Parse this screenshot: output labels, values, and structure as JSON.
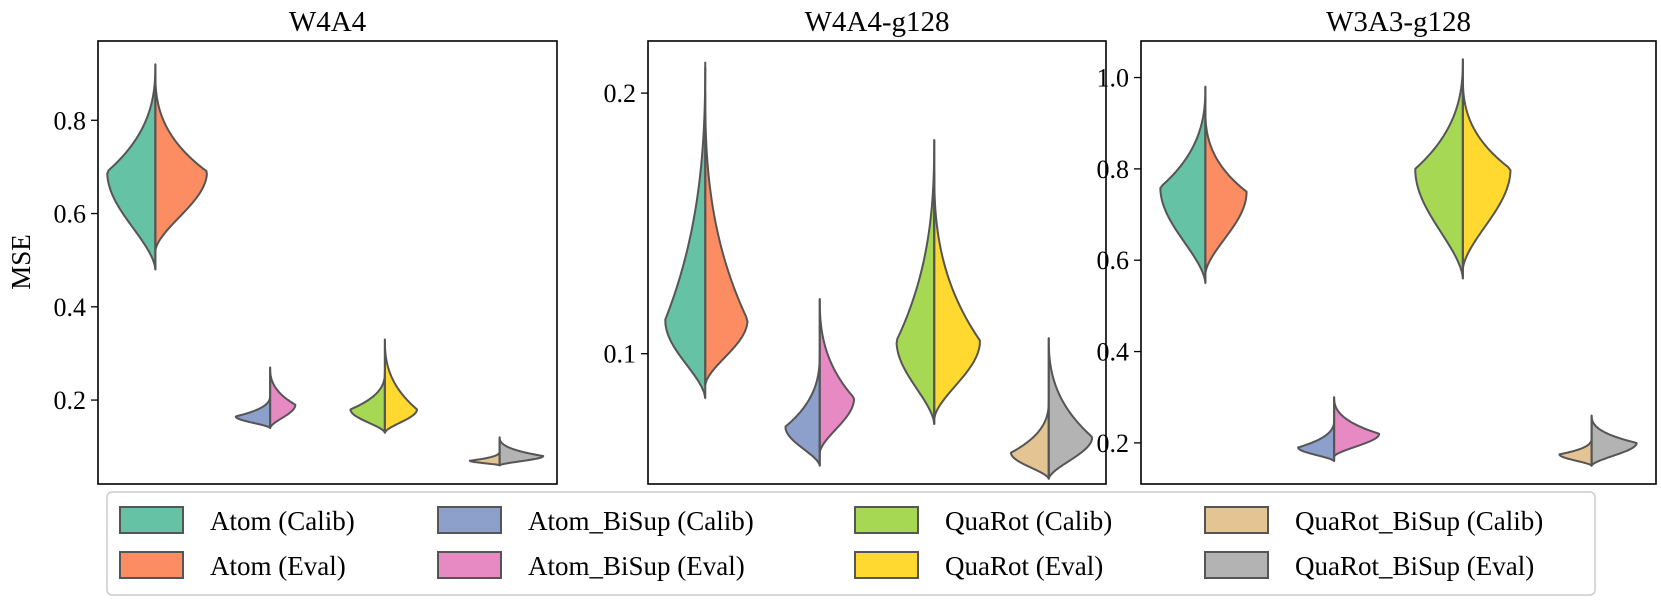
{
  "chart_data": [
    {
      "type": "violin",
      "title": "W4A4",
      "ylabel": "MSE",
      "ylim": [
        0.02,
        0.97
      ],
      "yticks": [
        "0.2",
        "0.4",
        "0.6",
        "0.8"
      ],
      "groups": [
        {
          "name": "Atom",
          "calib": {
            "min": 0.48,
            "max": 0.92,
            "peak": 0.69,
            "width": 0.42
          },
          "eval": {
            "min": 0.52,
            "max": 0.9,
            "peak": 0.69,
            "width": 0.45
          }
        },
        {
          "name": "Atom_BiSup",
          "calib": {
            "min": 0.14,
            "max": 0.21,
            "peak": 0.165,
            "width": 0.3
          },
          "eval": {
            "min": 0.14,
            "max": 0.27,
            "peak": 0.19,
            "width": 0.22
          }
        },
        {
          "name": "QuaRot",
          "calib": {
            "min": 0.13,
            "max": 0.26,
            "peak": 0.18,
            "width": 0.3
          },
          "eval": {
            "min": 0.13,
            "max": 0.33,
            "peak": 0.18,
            "width": 0.28
          }
        },
        {
          "name": "QuaRot_BiSup",
          "calib": {
            "min": 0.06,
            "max": 0.09,
            "peak": 0.07,
            "width": 0.26
          },
          "eval": {
            "min": 0.06,
            "max": 0.12,
            "peak": 0.08,
            "width": 0.38
          }
        }
      ]
    },
    {
      "type": "violin",
      "title": "W4A4-g128",
      "ylim": [
        0.05,
        0.22
      ],
      "yticks": [
        "0.1",
        "0.2"
      ],
      "groups": [
        {
          "name": "Atom",
          "calib": {
            "min": 0.083,
            "max": 0.212,
            "peak": 0.113,
            "width": 0.35
          },
          "eval": {
            "min": 0.088,
            "max": 0.2,
            "peak": 0.113,
            "width": 0.37
          }
        },
        {
          "name": "Atom_BiSup",
          "calib": {
            "min": 0.057,
            "max": 0.1,
            "peak": 0.072,
            "width": 0.3
          },
          "eval": {
            "min": 0.062,
            "max": 0.121,
            "peak": 0.083,
            "width": 0.3
          }
        },
        {
          "name": "QuaRot",
          "calib": {
            "min": 0.073,
            "max": 0.182,
            "peak": 0.105,
            "width": 0.33
          },
          "eval": {
            "min": 0.075,
            "max": 0.17,
            "peak": 0.105,
            "width": 0.4
          }
        },
        {
          "name": "QuaRot_BiSup",
          "calib": {
            "min": 0.052,
            "max": 0.082,
            "peak": 0.062,
            "width": 0.33
          },
          "eval": {
            "min": 0.052,
            "max": 0.106,
            "peak": 0.068,
            "width": 0.38
          }
        }
      ]
    },
    {
      "type": "violin",
      "title": "W3A3-g128",
      "ylim": [
        0.11,
        1.08
      ],
      "yticks": [
        "0.2",
        "0.4",
        "0.6",
        "0.8",
        "1.0"
      ],
      "groups": [
        {
          "name": "Atom",
          "calib": {
            "min": 0.55,
            "max": 0.98,
            "peak": 0.76,
            "width": 0.35
          },
          "eval": {
            "min": 0.57,
            "max": 0.93,
            "peak": 0.75,
            "width": 0.32
          }
        },
        {
          "name": "Atom_BiSup",
          "calib": {
            "min": 0.16,
            "max": 0.25,
            "peak": 0.19,
            "width": 0.28
          },
          "eval": {
            "min": 0.17,
            "max": 0.3,
            "peak": 0.22,
            "width": 0.35
          }
        },
        {
          "name": "QuaRot",
          "calib": {
            "min": 0.56,
            "max": 1.04,
            "peak": 0.8,
            "width": 0.37
          },
          "eval": {
            "min": 0.58,
            "max": 1.0,
            "peak": 0.8,
            "width": 0.37
          }
        },
        {
          "name": "QuaRot_BiSup",
          "calib": {
            "min": 0.15,
            "max": 0.21,
            "peak": 0.175,
            "width": 0.25
          },
          "eval": {
            "min": 0.15,
            "max": 0.26,
            "peak": 0.2,
            "width": 0.35
          }
        }
      ]
    }
  ],
  "legend": [
    {
      "label": "Atom (Calib)",
      "color": "#66c2a5"
    },
    {
      "label": "Atom (Eval)",
      "color": "#fc8d62"
    },
    {
      "label": "Atom_BiSup (Calib)",
      "color": "#8da0cb"
    },
    {
      "label": "Atom_BiSup (Eval)",
      "color": "#e78ac3"
    },
    {
      "label": "QuaRot (Calib)",
      "color": "#a6d854"
    },
    {
      "label": "QuaRot (Eval)",
      "color": "#ffd92f"
    },
    {
      "label": "QuaRot_BiSup (Calib)",
      "color": "#e5c494"
    },
    {
      "label": "QuaRot_BiSup (Eval)",
      "color": "#b3b3b3"
    }
  ]
}
